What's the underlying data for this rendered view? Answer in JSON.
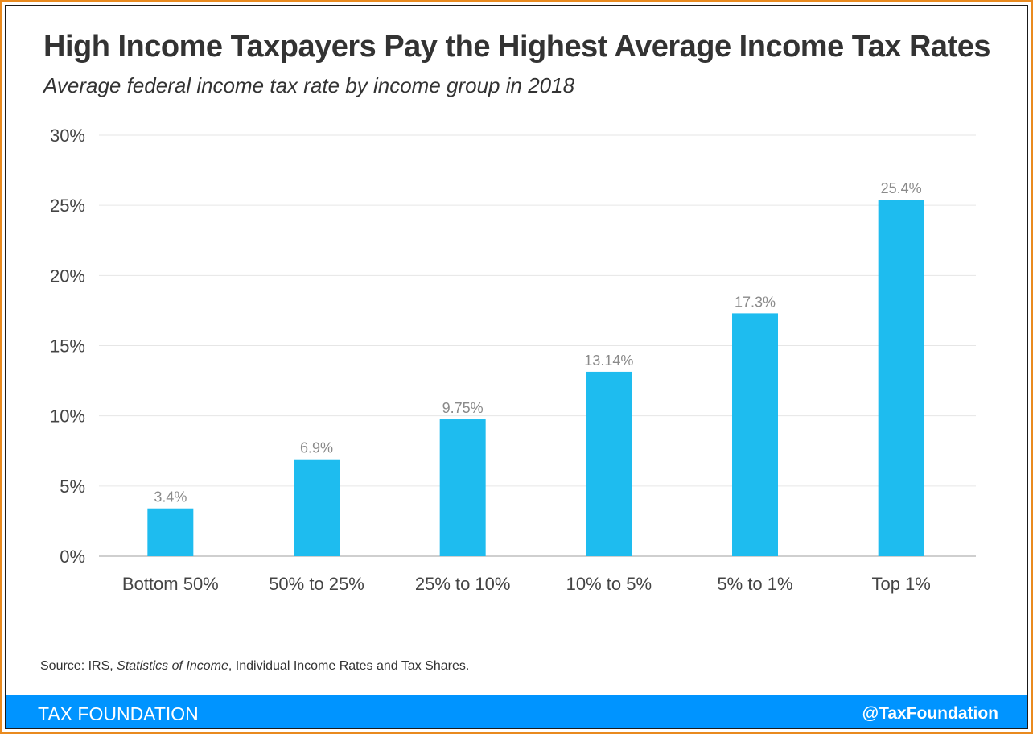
{
  "title": "High Income Taxpayers Pay the Highest Average Income Tax Rates",
  "subtitle": "Average federal income tax rate by income group in 2018",
  "source": {
    "prefix": "Source: IRS, ",
    "publication": "Statistics of Income",
    "suffix": ", Individual Income Rates and Tax Shares."
  },
  "footer": {
    "brand": "TAX FOUNDATION",
    "handle": "@TaxFoundation"
  },
  "colors": {
    "bar": "#1ebcef",
    "grid": "#e6e6e6",
    "axis_text": "#444444",
    "label_text": "#8a8a8a",
    "footer_bg": "#0094ff"
  },
  "chart_data": {
    "type": "bar",
    "title": "High Income Taxpayers Pay the Highest Average Income Tax Rates",
    "xlabel": "",
    "ylabel": "",
    "categories": [
      "Bottom 50%",
      "50% to 25%",
      "25% to 10%",
      "10% to 5%",
      "5% to 1%",
      "Top 1%"
    ],
    "values": [
      3.4,
      6.9,
      9.75,
      13.14,
      17.3,
      25.4
    ],
    "data_labels": [
      "3.4%",
      "6.9%",
      "9.75%",
      "13.14%",
      "17.3%",
      "25.4%"
    ],
    "ylim": [
      0,
      30
    ],
    "yticks": [
      0,
      5,
      10,
      15,
      20,
      25,
      30
    ],
    "ytick_labels": [
      "0%",
      "5%",
      "10%",
      "15%",
      "20%",
      "25%",
      "30%"
    ],
    "grid": true,
    "legend": "none"
  }
}
